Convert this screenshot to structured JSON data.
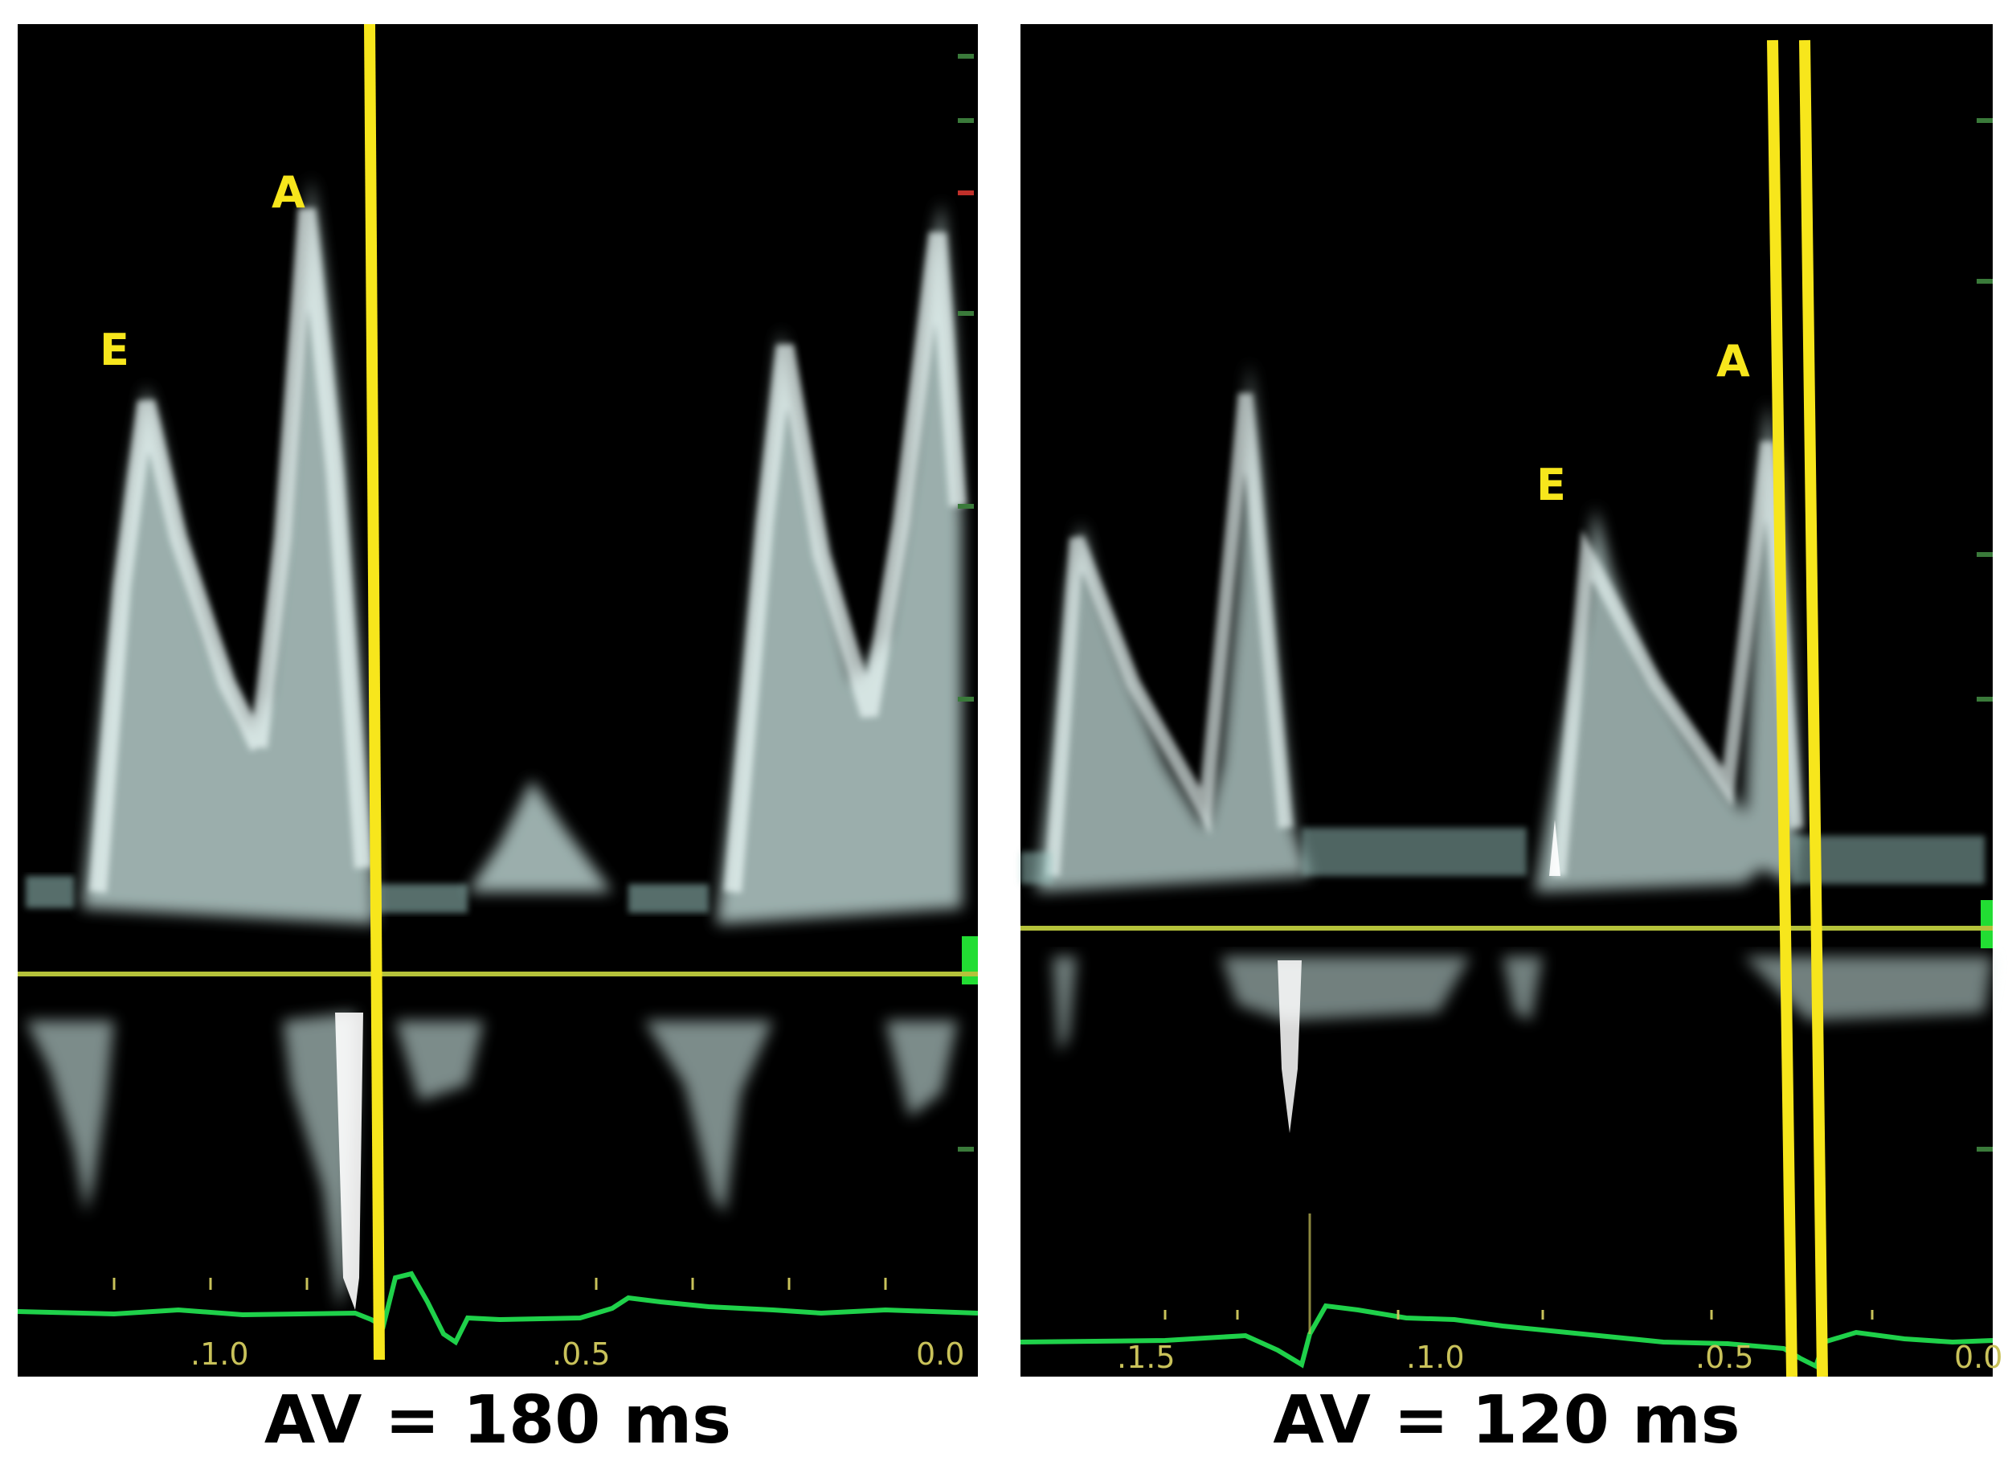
{
  "panels": [
    {
      "caption": "AV = 180 ms",
      "peak_labels": {
        "e": "E",
        "a": "A"
      },
      "time_ticks": [
        ".1.0",
        ".0.5",
        "0.0"
      ]
    },
    {
      "caption": "AV = 120 ms",
      "peak_labels": {
        "e": "E",
        "a": "A"
      },
      "time_ticks": [
        ".1.5",
        ".1.0",
        ".0.5",
        "0.0"
      ]
    }
  ],
  "colors": {
    "background": "#000000",
    "doppler_signal": "#dff5f2",
    "marker_line": "#f7e61c",
    "baseline": "#b5c23a",
    "ecg_trace": "#1fd14a",
    "peak_label": "#f7e61c",
    "tick_label": "#c9c25a",
    "caption_text": "#000000"
  }
}
